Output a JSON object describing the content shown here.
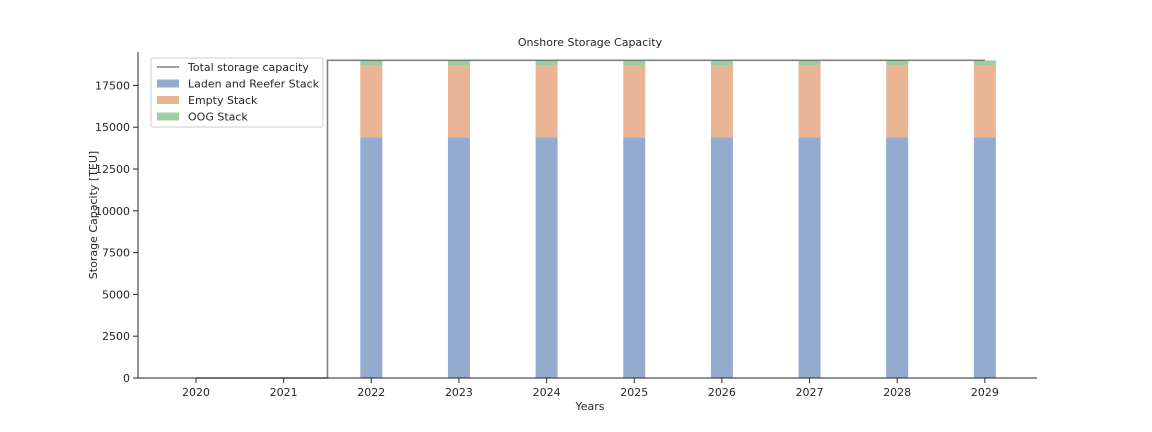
{
  "chart_data": {
    "type": "bar",
    "stacked": true,
    "title": "Onshore Storage Capacity",
    "xlabel": "Years",
    "ylabel": "Storage Capacity [TEU]",
    "categories": [
      "2020",
      "2021",
      "2022",
      "2023",
      "2024",
      "2025",
      "2026",
      "2027",
      "2028",
      "2029"
    ],
    "ylim": [
      0,
      19500
    ],
    "yticks": [
      0,
      2500,
      5000,
      7500,
      10000,
      12500,
      15000,
      17500
    ],
    "ytick_labels": [
      "0",
      "2500",
      "5000",
      "7500",
      "10000",
      "12500",
      "15000",
      "17500"
    ],
    "series": [
      {
        "name": "Laden and Reefer Stack",
        "color": "#92abcf",
        "values": [
          0,
          0,
          14400,
          14400,
          14400,
          14400,
          14400,
          14400,
          14400,
          14400
        ]
      },
      {
        "name": "Empty Stack",
        "color": "#eab595",
        "values": [
          0,
          0,
          4320,
          4320,
          4320,
          4320,
          4320,
          4320,
          4320,
          4320
        ]
      },
      {
        "name": "OOG Stack",
        "color": "#9dcda2",
        "values": [
          0,
          0,
          280,
          280,
          280,
          280,
          280,
          280,
          280,
          280
        ]
      }
    ],
    "line": {
      "name": "Total storage capacity",
      "color": "#808080",
      "step": "mid",
      "values": [
        0,
        0,
        19000,
        19000,
        19000,
        19000,
        19000,
        19000,
        19000,
        19000
      ]
    },
    "legend_position": "upper-left",
    "grid": false
  }
}
